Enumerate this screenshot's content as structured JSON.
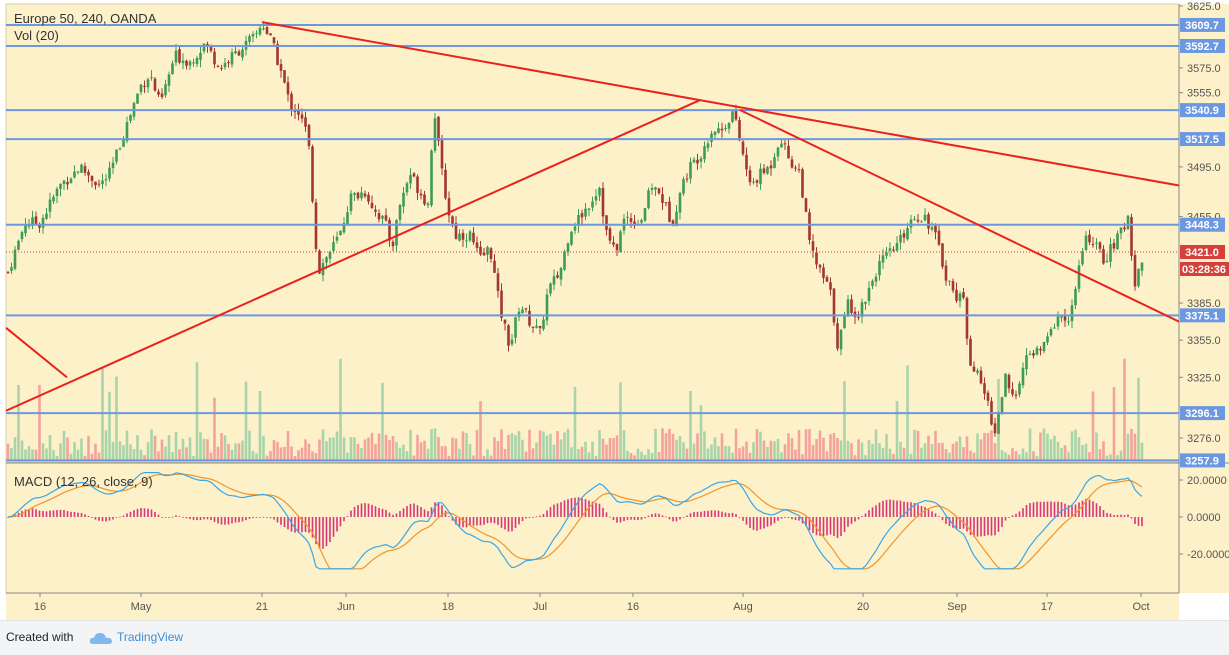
{
  "header": {
    "symbol": "Europe 50, 240, OANDA",
    "volume_label": "Vol (20)",
    "macd_label": "MACD (12, 26, close, 9)"
  },
  "colors": {
    "background": "#fdf1c9",
    "bull": "#3d9b57",
    "bear": "#a23632",
    "vol_up": "#a9d4ab",
    "vol_down": "#f4a29c",
    "hline": "#6b98e0",
    "trend": "#e8231e",
    "macd_line": "#3aa7e8",
    "signal_line": "#f0952c",
    "hist": "#d8387a",
    "price_badge": "#d6403a"
  },
  "price_axis": {
    "ticks": [
      "3625.0",
      "3575.0",
      "3555.0",
      "3495.0",
      "3455.0",
      "3385.0",
      "3355.0",
      "3325.0",
      "3276.0"
    ],
    "level_labels": [
      "3609.7",
      "3592.7",
      "3540.9",
      "3517.5",
      "3448.3",
      "3375.1",
      "3296.1",
      "3257.9"
    ],
    "current_price": "3421.0",
    "countdown": "03:28:36"
  },
  "macd_axis": {
    "ticks": [
      "20.0000",
      "0.0000",
      "-20.0000"
    ]
  },
  "time_axis": {
    "labels": [
      "16",
      "May",
      "21",
      "Jun",
      "18",
      "Jul",
      "16",
      "Aug",
      "20",
      "Sep",
      "17",
      "Oct"
    ]
  },
  "footer": {
    "created_with": "Created with",
    "brand": "TradingView"
  },
  "chart_data": {
    "type": "candlestick",
    "title": "Europe 50, 240, OANDA",
    "x_range": [
      "16",
      "Oct"
    ],
    "ylim": [
      3255,
      3625
    ],
    "horizontal_levels": [
      3609.7,
      3592.7,
      3540.9,
      3517.5,
      3448.3,
      3375.1,
      3296.1,
      3257.9
    ],
    "trend_lines": [
      {
        "from": [
          "21",
          3610
        ],
        "to": [
          "Oct",
          3480
        ]
      },
      {
        "from": [
          "16",
          3300
        ],
        "to": [
          "Jul-Aug",
          3550
        ]
      },
      {
        "from": [
          "Aug",
          3541
        ],
        "to": [
          "Oct",
          3370
        ]
      },
      {
        "from": [
          "Apr",
          3365
        ],
        "to": [
          "16",
          3325
        ]
      }
    ],
    "last_price": 3421.0,
    "price_path": [
      [
        0,
        3425
      ],
      [
        8,
        3410
      ],
      [
        25,
        3450
      ],
      [
        40,
        3450
      ],
      [
        60,
        3480
      ],
      [
        80,
        3495
      ],
      [
        100,
        3480
      ],
      [
        110,
        3490
      ],
      [
        125,
        3525
      ],
      [
        140,
        3560
      ],
      [
        150,
        3570
      ],
      [
        160,
        3545
      ],
      [
        175,
        3585
      ],
      [
        190,
        3580
      ],
      [
        205,
        3595
      ],
      [
        220,
        3575
      ],
      [
        240,
        3590
      ],
      [
        255,
        3600
      ],
      [
        262,
        3612
      ],
      [
        272,
        3595
      ],
      [
        280,
        3575
      ],
      [
        290,
        3545
      ],
      [
        298,
        3540
      ],
      [
        308,
        3520
      ],
      [
        318,
        3410
      ],
      [
        325,
        3420
      ],
      [
        340,
        3440
      ],
      [
        350,
        3470
      ],
      [
        365,
        3475
      ],
      [
        375,
        3460
      ],
      [
        385,
        3450
      ],
      [
        392,
        3430
      ],
      [
        400,
        3465
      ],
      [
        410,
        3490
      ],
      [
        420,
        3475
      ],
      [
        428,
        3465
      ],
      [
        434,
        3545
      ],
      [
        440,
        3500
      ],
      [
        448,
        3460
      ],
      [
        456,
        3440
      ],
      [
        470,
        3440
      ],
      [
        480,
        3420
      ],
      [
        490,
        3430
      ],
      [
        500,
        3380
      ],
      [
        510,
        3350
      ],
      [
        520,
        3385
      ],
      [
        530,
        3370
      ],
      [
        540,
        3360
      ],
      [
        548,
        3395
      ],
      [
        560,
        3410
      ],
      [
        570,
        3445
      ],
      [
        585,
        3460
      ],
      [
        600,
        3480
      ],
      [
        605,
        3445
      ],
      [
        615,
        3425
      ],
      [
        625,
        3455
      ],
      [
        640,
        3450
      ],
      [
        652,
        3480
      ],
      [
        662,
        3470
      ],
      [
        672,
        3450
      ],
      [
        682,
        3480
      ],
      [
        690,
        3495
      ],
      [
        700,
        3505
      ],
      [
        712,
        3525
      ],
      [
        722,
        3525
      ],
      [
        733,
        3540
      ],
      [
        740,
        3515
      ],
      [
        750,
        3480
      ],
      [
        762,
        3490
      ],
      [
        770,
        3495
      ],
      [
        780,
        3520
      ],
      [
        790,
        3500
      ],
      [
        800,
        3490
      ],
      [
        810,
        3430
      ],
      [
        820,
        3410
      ],
      [
        830,
        3395
      ],
      [
        838,
        3350
      ],
      [
        848,
        3385
      ],
      [
        858,
        3375
      ],
      [
        868,
        3395
      ],
      [
        878,
        3415
      ],
      [
        890,
        3425
      ],
      [
        900,
        3435
      ],
      [
        912,
        3455
      ],
      [
        925,
        3455
      ],
      [
        935,
        3440
      ],
      [
        945,
        3410
      ],
      [
        955,
        3390
      ],
      [
        962,
        3395
      ],
      [
        970,
        3340
      ],
      [
        978,
        3325
      ],
      [
        986,
        3310
      ],
      [
        995,
        3280
      ],
      [
        1005,
        3325
      ],
      [
        1012,
        3305
      ],
      [
        1020,
        3325
      ],
      [
        1030,
        3345
      ],
      [
        1040,
        3345
      ],
      [
        1050,
        3360
      ],
      [
        1058,
        3375
      ],
      [
        1066,
        3370
      ],
      [
        1074,
        3385
      ],
      [
        1080,
        3420
      ],
      [
        1088,
        3440
      ],
      [
        1096,
        3430
      ],
      [
        1104,
        3420
      ],
      [
        1112,
        3430
      ],
      [
        1120,
        3440
      ],
      [
        1128,
        3455
      ],
      [
        1135,
        3400
      ],
      [
        1142,
        3421
      ]
    ],
    "volume_series": "Vol (20)",
    "macd": {
      "fast": 12,
      "slow": 26,
      "source": "close",
      "signal": 9,
      "ylim": [
        -30,
        25
      ]
    }
  }
}
